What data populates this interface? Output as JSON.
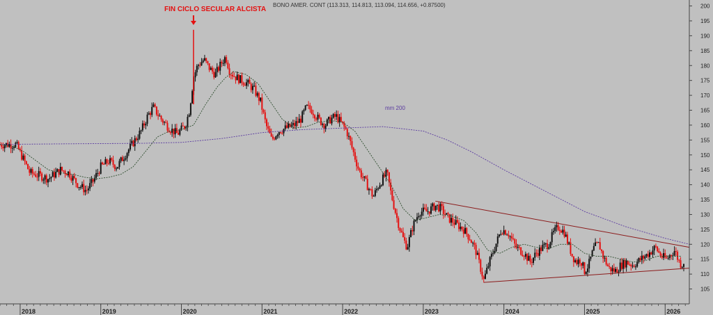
{
  "chart_data": {
    "type": "candlestick",
    "header": "BONO AMER. CONT (113.313, 114.813, 113.094, 114.656, +0.87500)",
    "annotation": "FIN CICLO SECULAR ALCISTA",
    "annotation_date": 2020.15,
    "ma_label": "mm 200",
    "ylim": [
      100,
      202
    ],
    "y_ticks": [
      105,
      110,
      115,
      120,
      125,
      130,
      135,
      140,
      145,
      150,
      155,
      160,
      165,
      170,
      175,
      180,
      185,
      190,
      195,
      200
    ],
    "x_ticks": [
      {
        "label": "2018",
        "x": 2018.0
      },
      {
        "label": "2019",
        "x": 2019.0
      },
      {
        "label": "2020",
        "x": 2020.0
      },
      {
        "label": "2021",
        "x": 2021.0
      },
      {
        "label": "2022",
        "x": 2022.0
      },
      {
        "label": "2023",
        "x": 2023.0
      },
      {
        "label": "2024",
        "x": 2024.0
      },
      {
        "label": "2025",
        "x": 2025.0
      },
      {
        "label": "2026",
        "x": 2026.0
      }
    ],
    "xlim": [
      2017.75,
      2026.3
    ],
    "price_path": [
      [
        2017.75,
        153.5
      ],
      [
        2017.95,
        153.5
      ],
      [
        2018.05,
        148
      ],
      [
        2018.12,
        144
      ],
      [
        2018.25,
        143
      ],
      [
        2018.35,
        142
      ],
      [
        2018.5,
        145
      ],
      [
        2018.6,
        144
      ],
      [
        2018.72,
        140
      ],
      [
        2018.82,
        138
      ],
      [
        2018.9,
        141
      ],
      [
        2019.0,
        146
      ],
      [
        2019.1,
        148
      ],
      [
        2019.2,
        146
      ],
      [
        2019.3,
        150
      ],
      [
        2019.4,
        154
      ],
      [
        2019.5,
        158
      ],
      [
        2019.58,
        163
      ],
      [
        2019.65,
        166
      ],
      [
        2019.75,
        162
      ],
      [
        2019.85,
        159
      ],
      [
        2019.95,
        157
      ],
      [
        2020.05,
        160
      ],
      [
        2020.1,
        165
      ],
      [
        2020.15,
        176
      ],
      [
        2020.2,
        180
      ],
      [
        2020.28,
        182
      ],
      [
        2020.35,
        179
      ],
      [
        2020.42,
        177
      ],
      [
        2020.5,
        181
      ],
      [
        2020.55,
        183
      ],
      [
        2020.6,
        178
      ],
      [
        2020.68,
        176
      ],
      [
        2020.75,
        175
      ],
      [
        2020.82,
        174
      ],
      [
        2020.9,
        172
      ],
      [
        2020.98,
        168
      ],
      [
        2021.05,
        160
      ],
      [
        2021.12,
        155
      ],
      [
        2021.2,
        158
      ],
      [
        2021.3,
        159
      ],
      [
        2021.4,
        160
      ],
      [
        2021.48,
        162
      ],
      [
        2021.55,
        166
      ],
      [
        2021.62,
        165
      ],
      [
        2021.7,
        162
      ],
      [
        2021.78,
        160
      ],
      [
        2021.85,
        162
      ],
      [
        2021.92,
        163
      ],
      [
        2022.0,
        160
      ],
      [
        2022.05,
        158
      ],
      [
        2022.12,
        152
      ],
      [
        2022.2,
        145
      ],
      [
        2022.3,
        140
      ],
      [
        2022.38,
        136
      ],
      [
        2022.45,
        140
      ],
      [
        2022.55,
        144
      ],
      [
        2022.6,
        137
      ],
      [
        2022.68,
        128
      ],
      [
        2022.75,
        122
      ],
      [
        2022.8,
        119
      ],
      [
        2022.87,
        126
      ],
      [
        2022.95,
        131
      ],
      [
        2023.05,
        131
      ],
      [
        2023.15,
        133
      ],
      [
        2023.22,
        132
      ],
      [
        2023.3,
        129
      ],
      [
        2023.4,
        127
      ],
      [
        2023.5,
        125
      ],
      [
        2023.58,
        122
      ],
      [
        2023.65,
        118
      ],
      [
        2023.7,
        113
      ],
      [
        2023.75,
        108
      ],
      [
        2023.82,
        114
      ],
      [
        2023.9,
        120
      ],
      [
        2023.97,
        125
      ],
      [
        2024.05,
        124
      ],
      [
        2024.15,
        119
      ],
      [
        2024.25,
        117
      ],
      [
        2024.33,
        114
      ],
      [
        2024.4,
        117
      ],
      [
        2024.48,
        119
      ],
      [
        2024.55,
        120
      ],
      [
        2024.62,
        124
      ],
      [
        2024.68,
        126
      ],
      [
        2024.75,
        124
      ],
      [
        2024.8,
        120
      ],
      [
        2024.85,
        116
      ],
      [
        2024.9,
        114
      ],
      [
        2024.95,
        115
      ],
      [
        2025.0,
        111
      ],
      [
        2025.05,
        113
      ],
      [
        2025.12,
        119
      ],
      [
        2025.18,
        120
      ],
      [
        2025.23,
        116
      ],
      [
        2025.3,
        112
      ],
      [
        2025.38,
        111
      ],
      [
        2025.45,
        113
      ],
      [
        2025.52,
        114
      ],
      [
        2025.6,
        113
      ],
      [
        2025.7,
        115
      ],
      [
        2025.8,
        117
      ],
      [
        2025.88,
        119
      ],
      [
        2025.95,
        116
      ],
      [
        2026.02,
        115
      ],
      [
        2026.08,
        117
      ],
      [
        2026.12,
        118
      ],
      [
        2026.16,
        115
      ],
      [
        2026.2,
        113
      ],
      [
        2026.24,
        114.5
      ]
    ],
    "ma_short": [
      [
        2017.75,
        153.5
      ],
      [
        2017.9,
        153
      ],
      [
        2018.05,
        151
      ],
      [
        2018.2,
        148
      ],
      [
        2018.35,
        145
      ],
      [
        2018.5,
        144
      ],
      [
        2018.65,
        143.5
      ],
      [
        2018.8,
        142.5
      ],
      [
        2018.95,
        142
      ],
      [
        2019.1,
        142.5
      ],
      [
        2019.25,
        143.5
      ],
      [
        2019.4,
        146
      ],
      [
        2019.55,
        151
      ],
      [
        2019.7,
        156
      ],
      [
        2019.85,
        158
      ],
      [
        2020.0,
        158.5
      ],
      [
        2020.15,
        160
      ],
      [
        2020.3,
        167
      ],
      [
        2020.45,
        173
      ],
      [
        2020.55,
        176
      ],
      [
        2020.65,
        178
      ],
      [
        2020.8,
        177
      ],
      [
        2020.95,
        174
      ],
      [
        2021.1,
        168
      ],
      [
        2021.25,
        162
      ],
      [
        2021.4,
        159
      ],
      [
        2021.55,
        159.5
      ],
      [
        2021.7,
        161
      ],
      [
        2021.85,
        161.5
      ],
      [
        2022.0,
        161
      ],
      [
        2022.15,
        158
      ],
      [
        2022.3,
        152
      ],
      [
        2022.45,
        146
      ],
      [
        2022.6,
        140
      ],
      [
        2022.75,
        132
      ],
      [
        2022.9,
        128
      ],
      [
        2023.05,
        129
      ],
      [
        2023.2,
        130
      ],
      [
        2023.35,
        129.5
      ],
      [
        2023.5,
        128
      ],
      [
        2023.65,
        124
      ],
      [
        2023.8,
        118
      ],
      [
        2023.95,
        117
      ],
      [
        2024.1,
        119
      ],
      [
        2024.25,
        120
      ],
      [
        2024.4,
        119
      ],
      [
        2024.55,
        118.5
      ],
      [
        2024.7,
        120
      ],
      [
        2024.85,
        120
      ],
      [
        2025.0,
        117
      ],
      [
        2025.15,
        116
      ],
      [
        2025.3,
        116
      ],
      [
        2025.45,
        115
      ],
      [
        2025.6,
        114
      ],
      [
        2025.75,
        114.5
      ],
      [
        2025.9,
        116
      ],
      [
        2026.05,
        116
      ],
      [
        2026.2,
        116
      ]
    ],
    "ma_200": [
      [
        2017.75,
        153.5
      ],
      [
        2018.0,
        153.6
      ],
      [
        2018.5,
        153.7
      ],
      [
        2019.0,
        153.8
      ],
      [
        2019.5,
        153.9
      ],
      [
        2020.0,
        154.2
      ],
      [
        2020.5,
        155.5
      ],
      [
        2021.0,
        157.5
      ],
      [
        2021.5,
        158.5
      ],
      [
        2022.0,
        159
      ],
      [
        2022.5,
        159.5
      ],
      [
        2023.0,
        158
      ],
      [
        2023.3,
        155
      ],
      [
        2023.6,
        151
      ],
      [
        2024.0,
        145
      ],
      [
        2024.5,
        138
      ],
      [
        2025.0,
        131
      ],
      [
        2025.5,
        126
      ],
      [
        2026.0,
        122
      ],
      [
        2026.3,
        120
      ]
    ],
    "trendline_upper": [
      [
        2023.15,
        134.5
      ],
      [
        2026.3,
        119
      ]
    ],
    "trendline_lower": [
      [
        2023.75,
        107.2
      ],
      [
        2026.3,
        112
      ]
    ],
    "colors": {
      "background": "#c0c0c0",
      "up_candle": "#111111",
      "down_candle": "#e41010",
      "ma_short": "#2e4d2e",
      "ma_200": "#5a3aa0",
      "trendline": "#8b1a1a",
      "annotation": "#e41010"
    }
  }
}
